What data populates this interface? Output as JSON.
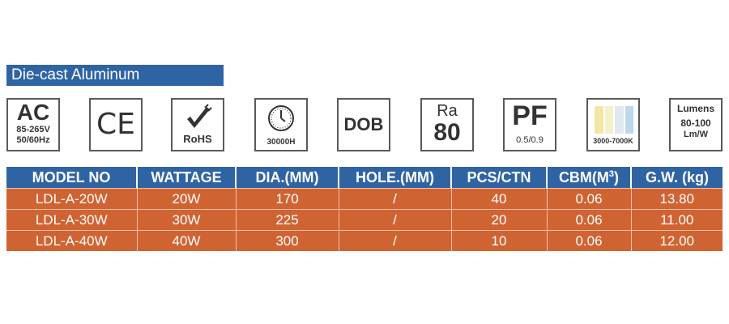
{
  "banner": {
    "title": "Die-cast Aluminum"
  },
  "icons": {
    "ac": {
      "big": "AC",
      "line1": "85-265V",
      "line2": "50/60Hz"
    },
    "ce": {
      "label": "CE"
    },
    "rohs": {
      "label": "RoHS"
    },
    "lifetime": {
      "label": "30000H"
    },
    "dob": {
      "label": "DOB"
    },
    "ra": {
      "top": "Ra",
      "value": "80"
    },
    "pf": {
      "big": "PF",
      "value": "0.5/0.9"
    },
    "cct": {
      "label": "3000-7000K",
      "colors": [
        "#f2e6a6",
        "#f6f0c8",
        "#dfe9ef",
        "#bcd8ea"
      ]
    },
    "lumens": {
      "line1": "Lumens",
      "line2": "80-100",
      "line3": "Lm/W"
    }
  },
  "table": {
    "headers": [
      "MODEL NO",
      "WATTAGE",
      "DIA.(MM)",
      "HOLE.(MM)",
      "PCS/CTN",
      "CBM(M",
      "G.W. (kg)"
    ],
    "cbm_sup": "3",
    "cbm_close": ")",
    "rows": [
      [
        "LDL-A-20W",
        "20W",
        "170",
        "/",
        "40",
        "0.06",
        "13.80"
      ],
      [
        "LDL-A-30W",
        "30W",
        "225",
        "/",
        "20",
        "0.06",
        "11.00"
      ],
      [
        "LDL-A-40W",
        "40W",
        "300",
        "/",
        "10",
        "0.06",
        "12.00"
      ]
    ]
  },
  "colors": {
    "header_blue": "#2f64a4",
    "row_orange": "#d06332"
  }
}
